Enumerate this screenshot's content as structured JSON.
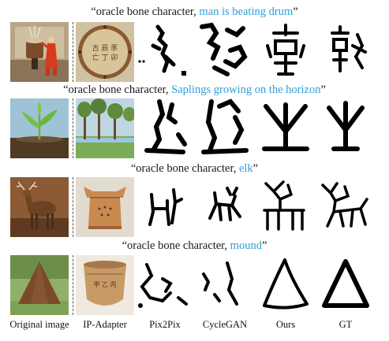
{
  "figure": {
    "rows": [
      {
        "prompt_prefix": "“oracle bone character, ",
        "prompt_subject": "man is beating drum",
        "prompt_suffix": "”"
      },
      {
        "prompt_prefix": "“oracle bone character, ",
        "prompt_subject": "Saplings growing on the horizon",
        "prompt_suffix": "”"
      },
      {
        "prompt_prefix": "“oracle bone character, ",
        "prompt_subject": "elk",
        "prompt_suffix": "”"
      },
      {
        "prompt_prefix": "“oracle bone character, ",
        "prompt_subject": "mound",
        "prompt_suffix": "”"
      }
    ],
    "columns": [
      "Original image",
      "IP-Adapter",
      "Pix2Pix",
      "CycleGAN",
      "Ours",
      "GT"
    ],
    "colors": {
      "highlight": "#2f9fd8",
      "text": "#1a1a1a"
    }
  }
}
